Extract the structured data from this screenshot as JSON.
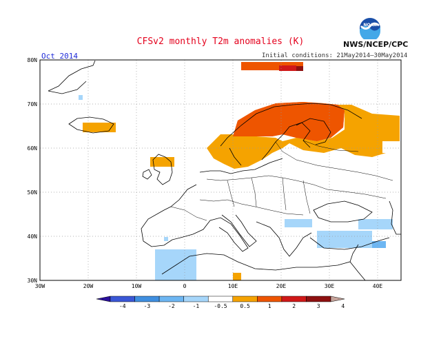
{
  "header": {
    "title": "CFSv2 monthly T2m anomalies (K)",
    "month": "Oct 2014",
    "initial_conditions": "Initial conditions: 21May2014—30May2014",
    "agency": "NWS/NCEP/CPC",
    "logo_text": "NOAA"
  },
  "map": {
    "lat_labels": [
      "80N",
      "70N",
      "60N",
      "50N",
      "40N",
      "30N"
    ],
    "lon_labels": [
      "30W",
      "20W",
      "10W",
      "0",
      "10E",
      "20E",
      "30E",
      "40E"
    ],
    "lon_range": [
      -30,
      45
    ],
    "lat_range": [
      30,
      80
    ]
  },
  "colorbar": {
    "labels": [
      "-4",
      "-3",
      "-2",
      "-1",
      "-0.5",
      "0.5",
      "1",
      "2",
      "3",
      "4"
    ],
    "colors": [
      "#2a0f9c",
      "#3a57d6",
      "#3f8fe0",
      "#6db6f2",
      "#a6d6fa",
      "#ffffff",
      "#f5a300",
      "#ee5500",
      "#d01818",
      "#8e1010",
      "#c5a39a"
    ]
  },
  "colors": {
    "title": "#e4001c",
    "month": "#1f2bd8",
    "coast": "#000000",
    "grid": "#999999"
  }
}
